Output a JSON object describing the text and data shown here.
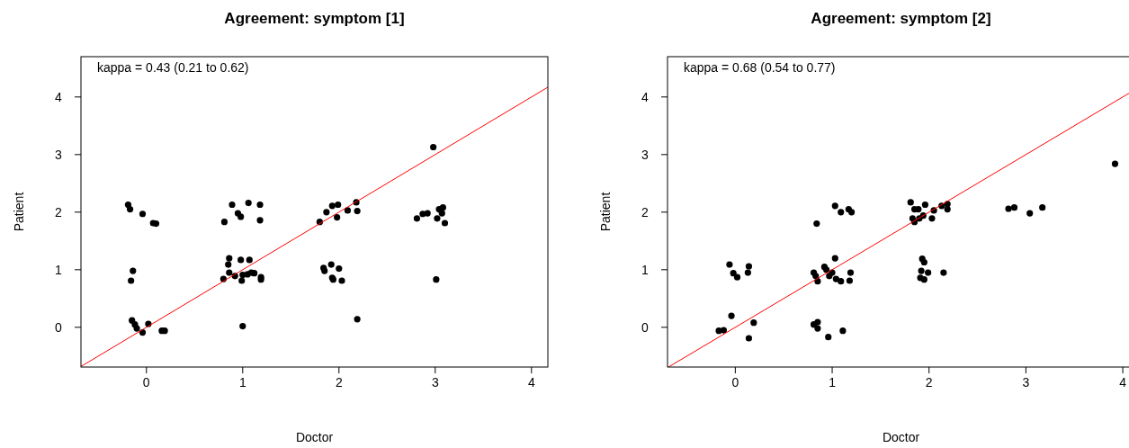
{
  "chart_data": [
    {
      "type": "scatter",
      "title": "Agreement: symptom [1]",
      "xlabel": "Doctor",
      "ylabel": "Patient",
      "annotations": [
        "kappa = 0.43 (0.21 to 0.62)"
      ],
      "xlim": [
        -0.68,
        4.17
      ],
      "ylim": [
        -0.69,
        4.7
      ],
      "xticks": [
        0,
        1,
        2,
        3,
        4
      ],
      "yticks": [
        0,
        1,
        2,
        3,
        4
      ],
      "grid": false,
      "series": [
        {
          "color": "#000000",
          "marker": "circle",
          "x": [
            -0.19,
            -0.17,
            -0.04,
            0.07,
            0.1,
            -0.14,
            -0.16,
            -0.15,
            -0.12,
            -0.1,
            -0.04,
            0.02,
            0.16,
            0.19,
            0.81,
            0.89,
            0.95,
            0.98,
            1.06,
            1.18,
            1.18,
            0.86,
            0.85,
            0.98,
            1.07,
            0.86,
            0.8,
            0.92,
            1.0,
            1.05,
            1.09,
            0.99,
            1.12,
            1.19,
            1.19,
            1.0,
            1.8,
            1.87,
            1.93,
            1.99,
            1.98,
            2.09,
            2.18,
            2.19,
            1.84,
            1.92,
            2.0,
            1.93,
            1.94,
            2.03,
            1.85,
            2.19,
            2.81,
            2.87,
            2.92,
            3.02,
            3.04,
            3.08,
            3.07,
            3.1,
            2.98,
            3.01
          ],
          "values": [
            2.13,
            2.05,
            1.97,
            1.81,
            1.8,
            0.98,
            0.81,
            0.12,
            0.05,
            -0.02,
            -0.09,
            0.06,
            -0.06,
            -0.06,
            1.83,
            2.13,
            1.98,
            1.92,
            2.16,
            2.13,
            1.86,
            1.2,
            1.09,
            1.17,
            1.17,
            0.95,
            0.84,
            0.89,
            0.91,
            0.92,
            0.95,
            0.81,
            0.94,
            0.87,
            0.83,
            0.02,
            1.83,
            2.0,
            2.11,
            2.13,
            1.91,
            2.03,
            2.17,
            2.02,
            1.03,
            1.09,
            1.02,
            0.86,
            0.83,
            0.81,
            0.98,
            0.14,
            1.89,
            1.97,
            1.98,
            1.89,
            2.05,
            2.08,
            1.98,
            1.81,
            3.13,
            0.83
          ]
        },
        {
          "type": "line",
          "color": "#ff0000",
          "marker": "none",
          "line_style": "solid",
          "x": [
            -0.68,
            4.17
          ],
          "values": [
            -0.68,
            4.17
          ]
        }
      ]
    },
    {
      "type": "scatter",
      "title": "Agreement: symptom [2]",
      "xlabel": "Doctor",
      "ylabel": "Patient",
      "annotations": [
        "kappa = 0.68 (0.54 to 0.77)"
      ],
      "xlim": [
        -0.7,
        4.12
      ],
      "ylim": [
        -0.69,
        4.7
      ],
      "xticks": [
        0,
        1,
        2,
        3,
        4
      ],
      "yticks": [
        0,
        1,
        2,
        3,
        4
      ],
      "grid": false,
      "series": [
        {
          "color": "#000000",
          "marker": "circle",
          "x": [
            -0.06,
            -0.02,
            0.02,
            0.14,
            0.13,
            -0.04,
            -0.17,
            -0.12,
            0.19,
            0.14,
            0.84,
            1.03,
            1.09,
            1.17,
            1.2,
            1.03,
            0.81,
            0.83,
            0.85,
            0.92,
            0.94,
            0.97,
            1.0,
            1.04,
            1.09,
            1.19,
            1.18,
            0.81,
            0.85,
            0.85,
            0.96,
            1.11,
            1.81,
            1.85,
            1.89,
            1.96,
            1.83,
            1.85,
            1.9,
            1.94,
            2.03,
            2.05,
            2.13,
            2.19,
            2.19,
            1.93,
            1.95,
            1.92,
            1.99,
            1.91,
            1.95,
            2.15,
            2.82,
            2.88,
            3.04,
            3.17,
            3.92
          ],
          "values": [
            1.09,
            0.94,
            0.87,
            1.06,
            0.95,
            0.2,
            -0.06,
            -0.05,
            0.08,
            -0.19,
            1.8,
            2.11,
            2.0,
            2.05,
            2.0,
            1.2,
            0.95,
            0.89,
            0.8,
            1.05,
            1.0,
            0.89,
            0.95,
            0.84,
            0.8,
            0.95,
            0.81,
            0.05,
            0.09,
            -0.02,
            -0.17,
            -0.06,
            2.17,
            2.05,
            2.05,
            2.13,
            1.89,
            1.83,
            1.89,
            1.94,
            1.89,
            2.03,
            2.11,
            2.14,
            2.05,
            1.19,
            1.13,
            0.98,
            0.95,
            0.86,
            0.83,
            0.95,
            2.06,
            2.08,
            1.98,
            2.08,
            2.84
          ]
        },
        {
          "type": "line",
          "color": "#ff0000",
          "marker": "none",
          "line_style": "solid",
          "x": [
            -0.69,
            4.12
          ],
          "values": [
            -0.69,
            4.12
          ]
        }
      ]
    }
  ]
}
